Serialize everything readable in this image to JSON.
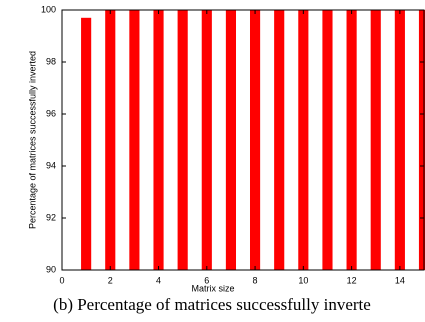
{
  "chart_data": {
    "type": "bar",
    "x": [
      1,
      2,
      3,
      4,
      5,
      6,
      7,
      8,
      9,
      10,
      11,
      12,
      13,
      14,
      15
    ],
    "values": [
      99.7,
      100,
      100,
      100,
      100,
      100,
      100,
      100,
      100,
      100,
      100,
      100,
      100,
      100,
      100
    ],
    "color": "#ff0000",
    "xlim": [
      0,
      15
    ],
    "xticks": [
      0,
      2,
      4,
      6,
      8,
      10,
      12,
      14
    ],
    "ylim": [
      90,
      100
    ],
    "yticks": [
      90,
      92,
      94,
      96,
      98,
      100
    ],
    "xlabel": "Matrix size",
    "ylabel": "Percentage of matrices successfully inverted",
    "caption": "(b) Percentage of matrices successfully inverte"
  }
}
